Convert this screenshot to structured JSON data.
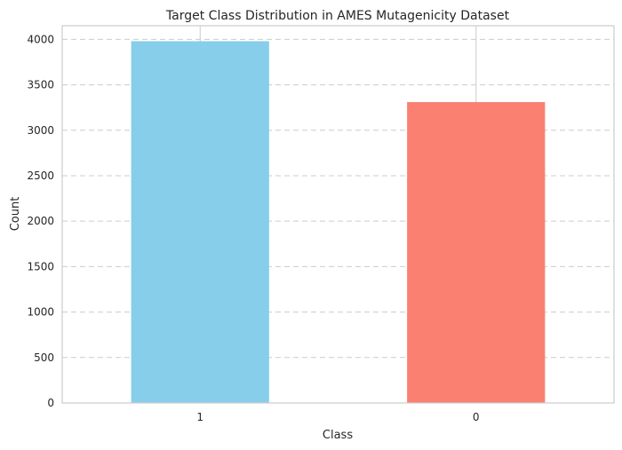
{
  "chart_data": {
    "type": "bar",
    "title": "Target Class Distribution in AMES Mutagenicity Dataset",
    "xlabel": "Class",
    "ylabel": "Count",
    "categories": [
      "1",
      "0"
    ],
    "values": [
      3980,
      3310
    ],
    "colors": [
      "#87ceeb",
      "#fa8072"
    ],
    "ylim": [
      0,
      4150
    ],
    "yticks": [
      0,
      500,
      1000,
      1500,
      2000,
      2500,
      3000,
      3500,
      4000
    ],
    "grid": "y-dashed",
    "legend": "none"
  }
}
